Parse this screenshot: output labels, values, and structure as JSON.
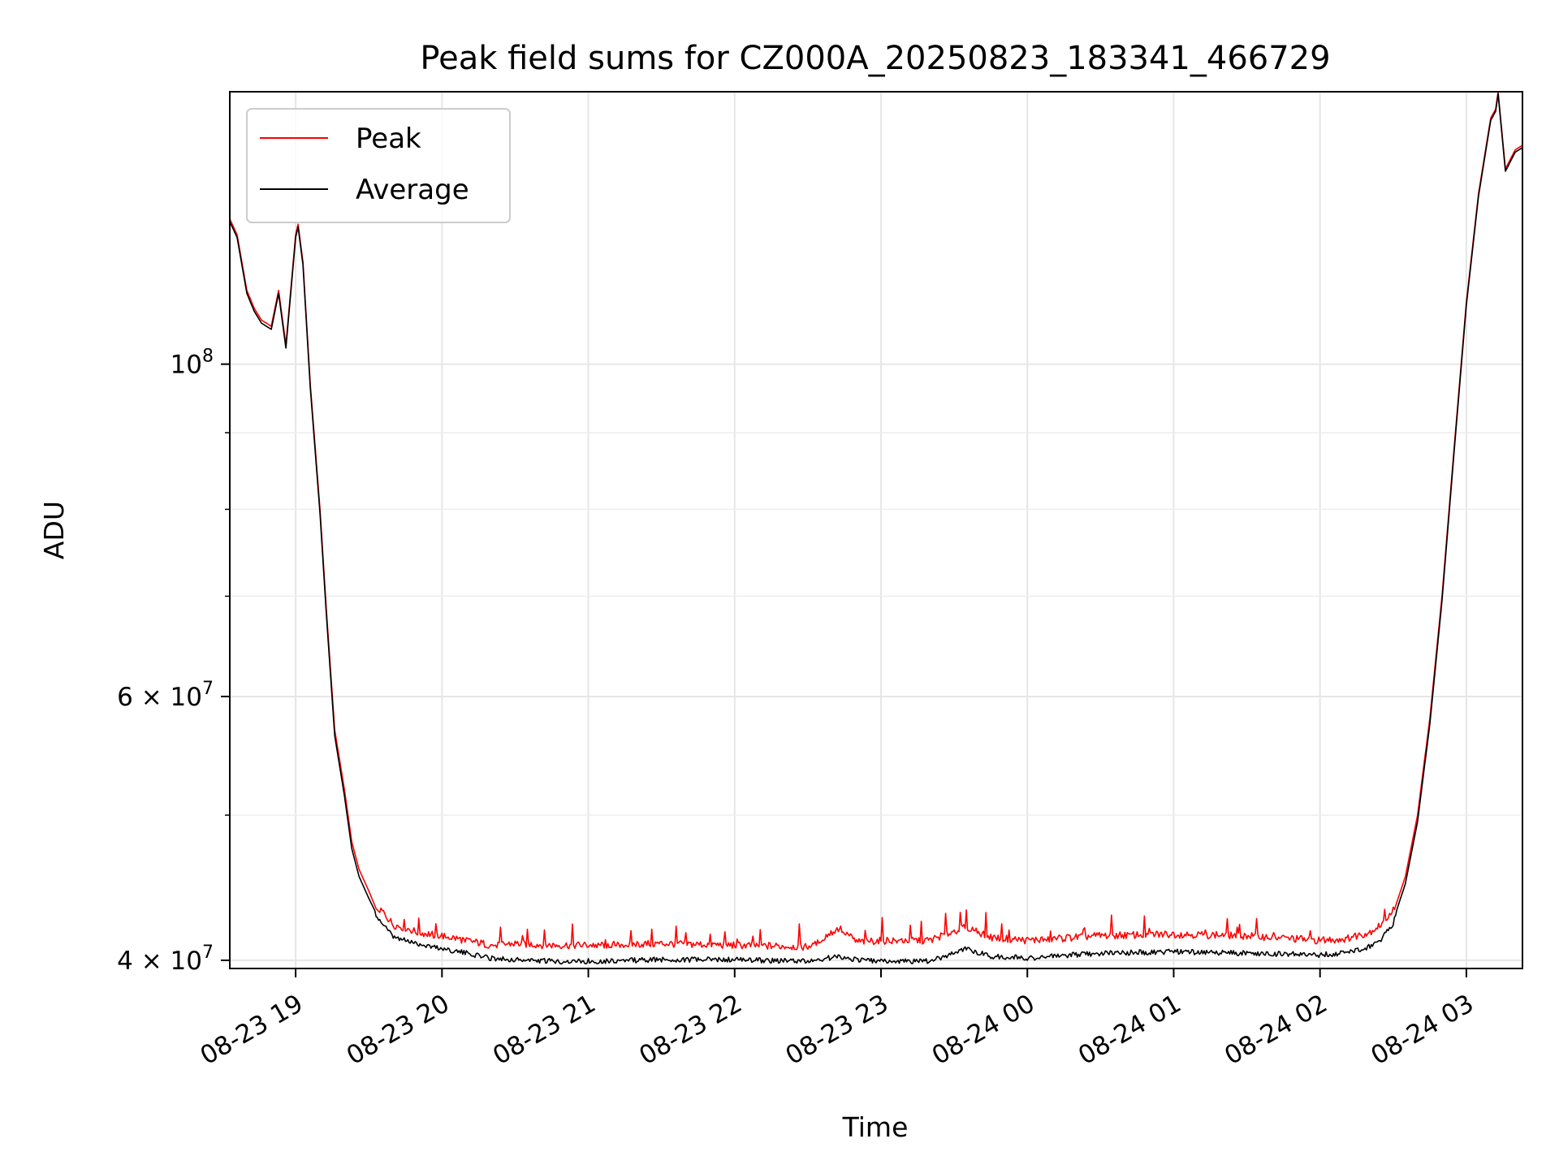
{
  "chart_data": {
    "type": "line",
    "title": "Peak field sums for CZ000A_20250823_183341_466729",
    "xlabel": "Time",
    "ylabel": "ADU",
    "yscale": "log",
    "ylim": [
      39500000,
      152000000
    ],
    "xlim": [
      "2025-08-23 18:33",
      "2025-08-24 03:23"
    ],
    "grid": true,
    "legend_position": "top-left",
    "x_ticks": [
      "08-23 19",
      "08-23 20",
      "08-23 21",
      "08-23 22",
      "08-23 23",
      "08-24 00",
      "08-24 01",
      "08-24 02",
      "08-24 03"
    ],
    "y_ticks": [
      {
        "value": 40000000,
        "mantissa": "4",
        "exponent": "7"
      },
      {
        "value": 60000000,
        "mantissa": "6",
        "exponent": "7"
      },
      {
        "value": 100000000,
        "mantissa": "",
        "exponent": "8"
      }
    ],
    "series": [
      {
        "name": "Peak",
        "color": "#ff0000",
        "x": [
          "2025-08-23 18:33",
          "2025-08-23 18:36",
          "2025-08-23 18:40",
          "2025-08-23 18:43",
          "2025-08-23 18:46",
          "2025-08-23 18:50",
          "2025-08-23 18:53",
          "2025-08-23 18:56",
          "2025-08-23 19:00",
          "2025-08-23 19:01",
          "2025-08-23 19:03",
          "2025-08-23 19:06",
          "2025-08-23 19:10",
          "2025-08-23 19:13",
          "2025-08-23 19:16",
          "2025-08-23 19:20",
          "2025-08-23 19:23",
          "2025-08-23 19:26",
          "2025-08-23 19:30",
          "2025-08-23 19:33",
          "2025-08-23 19:36",
          "2025-08-23 19:40",
          "2025-08-23 19:45",
          "2025-08-23 19:50",
          "2025-08-23 20:00",
          "2025-08-23 20:10",
          "2025-08-23 20:20",
          "2025-08-23 20:30",
          "2025-08-23 20:45",
          "2025-08-23 21:00",
          "2025-08-23 21:30",
          "2025-08-23 22:00",
          "2025-08-23 22:30",
          "2025-08-23 22:43",
          "2025-08-23 22:50",
          "2025-08-23 23:00",
          "2025-08-23 23:20",
          "2025-08-23 23:35",
          "2025-08-23 23:45",
          "2025-08-24 00:00",
          "2025-08-24 00:30",
          "2025-08-24 01:00",
          "2025-08-24 01:30",
          "2025-08-24 02:00",
          "2025-08-24 02:10",
          "2025-08-24 02:20",
          "2025-08-24 02:25",
          "2025-08-24 02:30",
          "2025-08-24 02:35",
          "2025-08-24 02:40",
          "2025-08-24 02:45",
          "2025-08-24 02:50",
          "2025-08-24 02:55",
          "2025-08-24 03:00",
          "2025-08-24 03:05",
          "2025-08-24 03:10",
          "2025-08-24 03:12",
          "2025-08-24 03:13",
          "2025-08-24 03:16",
          "2025-08-24 03:20",
          "2025-08-24 03:23"
        ],
        "values": [
          125000000,
          122000000,
          112000000,
          109000000,
          107000000,
          106000000,
          112000000,
          103000000,
          122000000,
          124000000,
          117000000,
          97000000,
          80000000,
          67000000,
          57000000,
          52000000,
          48000000,
          46000000,
          44500000,
          43300000,
          42800000,
          42000000,
          41800000,
          41500000,
          41300000,
          41000000,
          40700000,
          40800000,
          40700000,
          40700000,
          40800000,
          40700000,
          40600000,
          41800000,
          40900000,
          41000000,
          41000000,
          41900000,
          41200000,
          41000000,
          41300000,
          41400000,
          41300000,
          41000000,
          41100000,
          41500000,
          42000000,
          43000000,
          45500000,
          50000000,
          58000000,
          70000000,
          88000000,
          110000000,
          130000000,
          146000000,
          148000000,
          152000000,
          135000000,
          139000000,
          140000000
        ]
      },
      {
        "name": "Average",
        "color": "#000000",
        "x": [
          "2025-08-23 18:33",
          "2025-08-23 18:36",
          "2025-08-23 18:40",
          "2025-08-23 18:43",
          "2025-08-23 18:46",
          "2025-08-23 18:50",
          "2025-08-23 18:53",
          "2025-08-23 18:56",
          "2025-08-23 19:00",
          "2025-08-23 19:01",
          "2025-08-23 19:03",
          "2025-08-23 19:06",
          "2025-08-23 19:10",
          "2025-08-23 19:13",
          "2025-08-23 19:16",
          "2025-08-23 19:20",
          "2025-08-23 19:23",
          "2025-08-23 19:26",
          "2025-08-23 19:30",
          "2025-08-23 19:33",
          "2025-08-23 19:36",
          "2025-08-23 19:40",
          "2025-08-23 19:45",
          "2025-08-23 19:50",
          "2025-08-23 20:00",
          "2025-08-23 20:10",
          "2025-08-23 20:20",
          "2025-08-23 20:30",
          "2025-08-23 20:45",
          "2025-08-23 21:00",
          "2025-08-23 21:30",
          "2025-08-23 22:00",
          "2025-08-23 22:30",
          "2025-08-23 22:43",
          "2025-08-23 22:50",
          "2025-08-23 23:00",
          "2025-08-23 23:20",
          "2025-08-23 23:35",
          "2025-08-23 23:45",
          "2025-08-24 00:00",
          "2025-08-24 00:30",
          "2025-08-24 01:00",
          "2025-08-24 01:30",
          "2025-08-24 02:00",
          "2025-08-24 02:10",
          "2025-08-24 02:20",
          "2025-08-24 02:25",
          "2025-08-24 02:30",
          "2025-08-24 02:35",
          "2025-08-24 02:40",
          "2025-08-24 02:45",
          "2025-08-24 02:50",
          "2025-08-24 02:55",
          "2025-08-24 03:00",
          "2025-08-24 03:05",
          "2025-08-24 03:10",
          "2025-08-24 03:12",
          "2025-08-24 03:13",
          "2025-08-24 03:16",
          "2025-08-24 03:20",
          "2025-08-24 03:23"
        ],
        "values": [
          124500000,
          121500000,
          111500000,
          108500000,
          106500000,
          105500000,
          111500000,
          102500000,
          121500000,
          123500000,
          116500000,
          96500000,
          79500000,
          66500000,
          56500000,
          51500000,
          47500000,
          45500000,
          44000000,
          43000000,
          42400000,
          41600000,
          41400000,
          41200000,
          40900000,
          40600000,
          40300000,
          40200000,
          40100000,
          40100000,
          40200000,
          40200000,
          40100000,
          40400000,
          40200000,
          40100000,
          40100000,
          40900000,
          40400000,
          40300000,
          40600000,
          40700000,
          40600000,
          40500000,
          40600000,
          41000000,
          41500000,
          42500000,
          45000000,
          49500000,
          57500000,
          69500000,
          87500000,
          109500000,
          129500000,
          145500000,
          147500000,
          151500000,
          134500000,
          138500000,
          139500000
        ]
      }
    ]
  }
}
